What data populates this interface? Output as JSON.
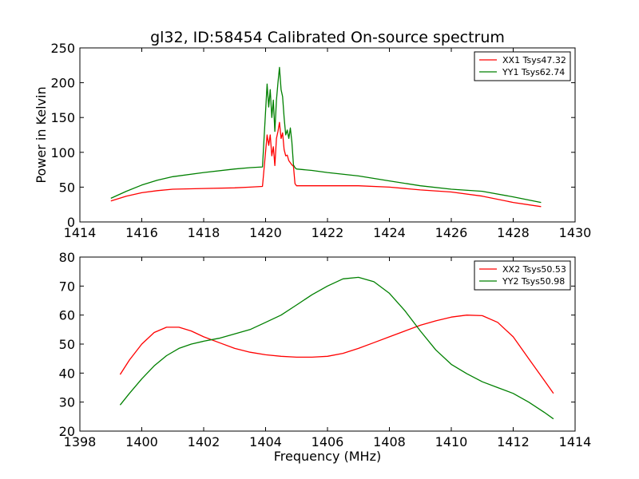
{
  "figure": {
    "title": "gl32, ID:58454 Calibrated On-source spectrum"
  },
  "chart_data": [
    {
      "type": "line",
      "title": "gl32, ID:58454 Calibrated On-source spectrum",
      "xlabel": "",
      "ylabel": "Power in Kelvin",
      "xlim": [
        1414,
        1430
      ],
      "ylim": [
        0,
        250
      ],
      "xticks": [
        "1414",
        "1416",
        "1418",
        "1420",
        "1422",
        "1424",
        "1426",
        "1428",
        "1430"
      ],
      "yticks": [
        "0",
        "50",
        "100",
        "150",
        "200",
        "250"
      ],
      "grid": false,
      "legend_position": "top-right",
      "series": [
        {
          "name": "XX1 Tsys47.32",
          "color": "#ff0000",
          "x": [
            1415.0,
            1415.5,
            1416.0,
            1416.5,
            1417.0,
            1418.0,
            1419.0,
            1419.5,
            1419.9,
            1420.05,
            1420.1,
            1420.15,
            1420.2,
            1420.25,
            1420.3,
            1420.35,
            1420.4,
            1420.45,
            1420.5,
            1420.55,
            1420.6,
            1420.65,
            1420.7,
            1420.75,
            1420.8,
            1420.85,
            1420.9,
            1420.95,
            1421.0,
            1421.5,
            1422.0,
            1423.0,
            1424.0,
            1425.0,
            1426.0,
            1427.0,
            1428.0,
            1428.9
          ],
          "y": [
            30,
            37,
            42,
            45,
            47,
            48,
            49,
            50,
            51,
            125,
            110,
            125,
            95,
            108,
            81,
            120,
            130,
            143,
            120,
            128,
            104,
            95,
            96,
            88,
            85,
            82,
            80,
            55,
            52,
            52,
            52,
            52,
            50,
            46,
            43,
            37,
            28,
            22
          ]
        },
        {
          "name": "YY1 Tsys62.74",
          "color": "#008000",
          "x": [
            1415.0,
            1415.5,
            1416.0,
            1416.5,
            1417.0,
            1418.0,
            1419.0,
            1419.5,
            1419.9,
            1420.05,
            1420.1,
            1420.15,
            1420.2,
            1420.25,
            1420.3,
            1420.35,
            1420.4,
            1420.45,
            1420.5,
            1420.55,
            1420.6,
            1420.65,
            1420.7,
            1420.75,
            1420.8,
            1420.85,
            1420.9,
            1420.95,
            1421.0,
            1421.5,
            1422.0,
            1423.0,
            1424.0,
            1425.0,
            1426.0,
            1427.0,
            1428.0,
            1428.9
          ],
          "y": [
            34,
            44,
            53,
            60,
            65,
            71,
            76,
            78,
            79,
            198,
            165,
            190,
            150,
            175,
            130,
            175,
            200,
            222,
            190,
            180,
            150,
            125,
            132,
            120,
            135,
            115,
            82,
            78,
            76,
            74,
            71,
            66,
            59,
            52,
            47,
            44,
            36,
            28
          ]
        }
      ]
    },
    {
      "type": "line",
      "title": "",
      "xlabel": "Frequency (MHz)",
      "ylabel": "",
      "xlim": [
        1398,
        1414
      ],
      "ylim": [
        20,
        80
      ],
      "xticks": [
        "1398",
        "1400",
        "1402",
        "1404",
        "1406",
        "1408",
        "1410",
        "1412",
        "1414"
      ],
      "yticks": [
        "20",
        "30",
        "40",
        "50",
        "60",
        "70",
        "80"
      ],
      "grid": false,
      "legend_position": "top-right",
      "series": [
        {
          "name": "XX2 Tsys50.53",
          "color": "#ff0000",
          "x": [
            1399.3,
            1399.6,
            1400.0,
            1400.4,
            1400.8,
            1401.2,
            1401.6,
            1402.0,
            1402.5,
            1403.0,
            1403.5,
            1404.0,
            1404.5,
            1405.0,
            1405.5,
            1406.0,
            1406.5,
            1407.0,
            1407.5,
            1408.0,
            1408.5,
            1409.0,
            1409.5,
            1410.0,
            1410.5,
            1411.0,
            1411.5,
            1412.0,
            1412.5,
            1413.0,
            1413.3
          ],
          "y": [
            39.5,
            44.5,
            50.0,
            54.0,
            55.8,
            55.8,
            54.5,
            52.5,
            50.5,
            48.5,
            47.2,
            46.3,
            45.8,
            45.5,
            45.5,
            45.8,
            46.8,
            48.5,
            50.5,
            52.5,
            54.5,
            56.5,
            58.0,
            59.3,
            60.0,
            59.8,
            57.5,
            52.5,
            45.0,
            37.5,
            33.0
          ]
        },
        {
          "name": "YY2 Tsys50.98",
          "color": "#008000",
          "x": [
            1399.3,
            1399.6,
            1400.0,
            1400.4,
            1400.8,
            1401.2,
            1401.6,
            1402.0,
            1402.5,
            1403.0,
            1403.5,
            1404.0,
            1404.5,
            1405.0,
            1405.5,
            1406.0,
            1406.5,
            1407.0,
            1407.5,
            1408.0,
            1408.5,
            1409.0,
            1409.5,
            1410.0,
            1410.5,
            1411.0,
            1411.5,
            1412.0,
            1412.5,
            1413.0,
            1413.3
          ],
          "y": [
            29.0,
            33.0,
            38.0,
            42.5,
            46.0,
            48.5,
            50.0,
            51.0,
            52.0,
            53.5,
            55.0,
            57.5,
            60.0,
            63.5,
            67.0,
            70.0,
            72.5,
            73.0,
            71.5,
            67.5,
            61.5,
            54.5,
            48.0,
            43.0,
            39.8,
            37.0,
            35.0,
            33.0,
            30.0,
            26.5,
            24.2
          ]
        }
      ]
    }
  ]
}
